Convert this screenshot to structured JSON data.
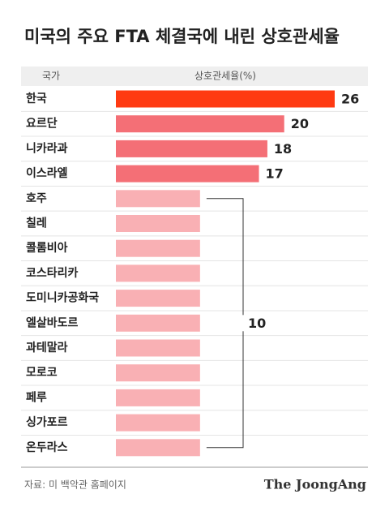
{
  "chart_data": {
    "type": "bar",
    "orientation": "horizontal",
    "title": "미국의 주요 FTA 체결국에 내린 상호관세율",
    "column_labels": [
      "국가",
      "상호관세율(%)"
    ],
    "categories": [
      "한국",
      "요르단",
      "니카라과",
      "이스라엘",
      "호주",
      "칠레",
      "콜롬비아",
      "코스타리카",
      "도미니카공화국",
      "엘살바도르",
      "과테말라",
      "모로코",
      "페루",
      "싱가포르",
      "온두라스"
    ],
    "values": [
      26,
      20,
      18,
      17,
      10,
      10,
      10,
      10,
      10,
      10,
      10,
      10,
      10,
      10,
      10
    ],
    "colors": [
      "#ff3a12",
      "#f46f76",
      "#f46f76",
      "#f46f76",
      "#f9b0b4",
      "#f9b0b4",
      "#f9b0b4",
      "#f9b0b4",
      "#f9b0b4",
      "#f9b0b4",
      "#f9b0b4",
      "#f9b0b4",
      "#f9b0b4",
      "#f9b0b4",
      "#f9b0b4"
    ],
    "xlim": [
      0,
      26
    ],
    "source": "자료: 미 백악관 홈페이지",
    "logo": "The JoongAng"
  }
}
